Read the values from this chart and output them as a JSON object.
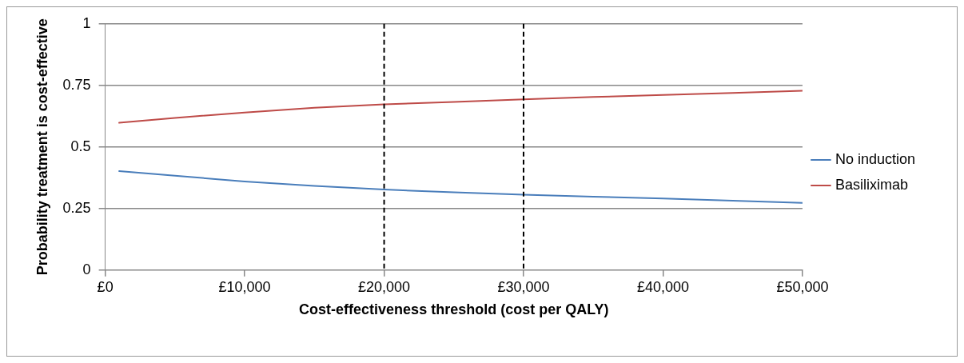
{
  "chart_data": {
    "type": "line",
    "xlabel": "Cost-effectiveness threshold (cost per QALY)",
    "ylabel": "Probability treatment is cost-effective",
    "x": [
      1000,
      5000,
      10000,
      15000,
      20000,
      25000,
      30000,
      35000,
      40000,
      45000,
      50000
    ],
    "series": [
      {
        "name": "No induction",
        "color": "#4a7ebb",
        "values": [
          0.402,
          0.383,
          0.36,
          0.342,
          0.327,
          0.316,
          0.306,
          0.298,
          0.291,
          0.282,
          0.273
        ]
      },
      {
        "name": "Basiliximab",
        "color": "#be4b48",
        "values": [
          0.598,
          0.618,
          0.64,
          0.659,
          0.673,
          0.683,
          0.693,
          0.703,
          0.711,
          0.719,
          0.728
        ]
      }
    ],
    "xlim": [
      0,
      50000
    ],
    "xticks": [
      {
        "value": 0,
        "label": "£0"
      },
      {
        "value": 10000,
        "label": "£10,000"
      },
      {
        "value": 20000,
        "label": "£20,000"
      },
      {
        "value": 30000,
        "label": "£30,000"
      },
      {
        "value": 40000,
        "label": "£40,000"
      },
      {
        "value": 50000,
        "label": "£50,000"
      }
    ],
    "ylim": [
      0,
      1
    ],
    "yticks": [
      0,
      0.25,
      0.5,
      0.75,
      1
    ],
    "ref_lines": [
      {
        "axis": "x",
        "value": 20000,
        "color": "#000000",
        "line_style": "dashed"
      },
      {
        "axis": "x",
        "value": 30000,
        "color": "#000000",
        "line_style": "dashed"
      }
    ],
    "grid": "y",
    "legend": "right",
    "marker": "none",
    "line_style": "solid"
  }
}
